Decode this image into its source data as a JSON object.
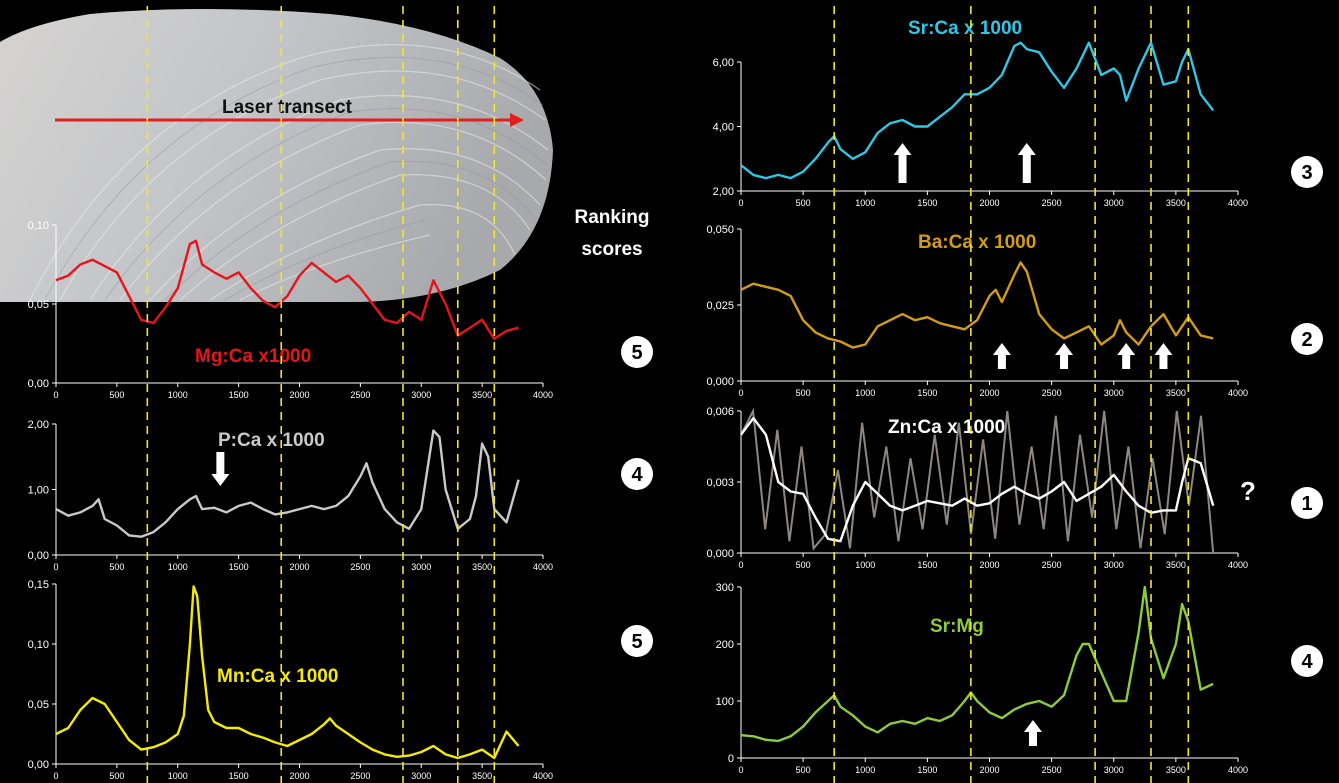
{
  "image": {
    "photo_label": "Laser transect",
    "ranking_label": [
      "Ranking",
      "scores"
    ],
    "zn_note": "?"
  },
  "colors": {
    "background": "#000000",
    "axis": "#ffffff",
    "guide_lines": "#f5e62a",
    "transect_arrow": "#e0201c",
    "badge_fill": "#ffffff",
    "badge_text": "#000000",
    "zn_raw": "#8e8680"
  },
  "chart_data": [
    {
      "id": "mg",
      "type": "line",
      "title": "Mg:Ca  x1000",
      "color": "#e8141a",
      "xlim": [
        0,
        4000
      ],
      "ylim": [
        0,
        0.1
      ],
      "xticks": [
        "0",
        "500",
        "1000",
        "1500",
        "2000",
        "2500",
        "3000",
        "3500",
        "4000"
      ],
      "yticks": [
        "0,00",
        "0,05",
        "0,10"
      ],
      "score": "5",
      "x": [
        0,
        100,
        200,
        300,
        400,
        500,
        600,
        700,
        800,
        900,
        1000,
        1100,
        1150,
        1200,
        1300,
        1400,
        1500,
        1600,
        1700,
        1800,
        1900,
        2000,
        2100,
        2200,
        2300,
        2400,
        2500,
        2600,
        2700,
        2800,
        2900,
        3000,
        3100,
        3200,
        3300,
        3400,
        3500,
        3600,
        3700,
        3800
      ],
      "y": [
        0.065,
        0.068,
        0.075,
        0.078,
        0.074,
        0.07,
        0.055,
        0.04,
        0.038,
        0.048,
        0.06,
        0.088,
        0.09,
        0.075,
        0.07,
        0.066,
        0.07,
        0.06,
        0.052,
        0.048,
        0.055,
        0.068,
        0.076,
        0.07,
        0.064,
        0.068,
        0.06,
        0.05,
        0.04,
        0.038,
        0.045,
        0.04,
        0.065,
        0.05,
        0.03,
        0.035,
        0.04,
        0.028,
        0.033,
        0.035
      ],
      "arrows": []
    },
    {
      "id": "p",
      "type": "line",
      "title": "P:Ca  x 1000",
      "color": "#c9c9c9",
      "xlim": [
        0,
        4000
      ],
      "ylim": [
        0,
        2
      ],
      "xticks": [
        "0",
        "500",
        "1000",
        "1500",
        "2000",
        "2500",
        "3000",
        "3500",
        "4000"
      ],
      "yticks": [
        "0,00",
        "1,00",
        "2,00"
      ],
      "score": "4",
      "x": [
        0,
        100,
        200,
        300,
        350,
        400,
        500,
        600,
        700,
        800,
        900,
        1000,
        1100,
        1150,
        1200,
        1300,
        1400,
        1500,
        1600,
        1700,
        1800,
        1900,
        2000,
        2100,
        2200,
        2300,
        2400,
        2500,
        2550,
        2600,
        2700,
        2800,
        2900,
        3000,
        3050,
        3100,
        3150,
        3200,
        3300,
        3400,
        3450,
        3500,
        3550,
        3600,
        3700,
        3800
      ],
      "y": [
        0.7,
        0.6,
        0.65,
        0.75,
        0.85,
        0.55,
        0.45,
        0.3,
        0.28,
        0.35,
        0.5,
        0.7,
        0.85,
        0.9,
        0.7,
        0.72,
        0.65,
        0.75,
        0.8,
        0.7,
        0.62,
        0.65,
        0.7,
        0.75,
        0.7,
        0.75,
        0.9,
        1.2,
        1.4,
        1.1,
        0.7,
        0.5,
        0.4,
        0.7,
        1.3,
        1.9,
        1.8,
        1.0,
        0.4,
        0.55,
        0.9,
        1.7,
        1.5,
        0.7,
        0.5,
        1.15
      ],
      "arrows": [
        {
          "x": 1350,
          "dir": "down"
        }
      ]
    },
    {
      "id": "mn",
      "type": "line",
      "title": "Mn:Ca   x 1000",
      "color": "#f4ea06",
      "xlim": [
        0,
        4000
      ],
      "ylim": [
        0,
        0.15
      ],
      "xticks": [
        "0",
        "500",
        "1000",
        "1500",
        "2000",
        "2500",
        "3000",
        "3500",
        "4000"
      ],
      "yticks": [
        "0,00",
        "0,05",
        "0,10",
        "0,15"
      ],
      "score": "5",
      "x": [
        0,
        100,
        200,
        300,
        400,
        500,
        600,
        700,
        800,
        900,
        1000,
        1050,
        1100,
        1130,
        1160,
        1200,
        1250,
        1300,
        1400,
        1500,
        1600,
        1700,
        1800,
        1900,
        2000,
        2100,
        2200,
        2250,
        2300,
        2400,
        2500,
        2600,
        2700,
        2800,
        2900,
        3000,
        3100,
        3200,
        3300,
        3400,
        3500,
        3600,
        3700,
        3800
      ],
      "y": [
        0.025,
        0.03,
        0.045,
        0.055,
        0.05,
        0.035,
        0.02,
        0.012,
        0.014,
        0.018,
        0.025,
        0.04,
        0.1,
        0.148,
        0.14,
        0.09,
        0.045,
        0.035,
        0.03,
        0.03,
        0.025,
        0.022,
        0.018,
        0.015,
        0.02,
        0.025,
        0.033,
        0.038,
        0.032,
        0.025,
        0.018,
        0.012,
        0.008,
        0.006,
        0.007,
        0.01,
        0.015,
        0.008,
        0.005,
        0.008,
        0.012,
        0.005,
        0.027,
        0.015
      ],
      "arrows": []
    },
    {
      "id": "sr",
      "type": "line",
      "title": "Sr:Ca   x 1000",
      "color": "#2ec8e6",
      "xlim": [
        0,
        4000
      ],
      "ylim": [
        2,
        6
      ],
      "xticks": [
        "0",
        "500",
        "1000",
        "1500",
        "2000",
        "2500",
        "3000",
        "3500",
        "4000"
      ],
      "yticks": [
        "2,00",
        "4,00",
        "6,00"
      ],
      "score": "3",
      "x": [
        0,
        100,
        200,
        300,
        400,
        500,
        600,
        700,
        750,
        800,
        900,
        1000,
        1100,
        1200,
        1300,
        1400,
        1500,
        1600,
        1700,
        1800,
        1900,
        2000,
        2100,
        2200,
        2250,
        2300,
        2400,
        2500,
        2600,
        2700,
        2800,
        2900,
        3000,
        3050,
        3100,
        3200,
        3300,
        3400,
        3500,
        3550,
        3600,
        3700,
        3800
      ],
      "y": [
        2.8,
        2.5,
        2.4,
        2.5,
        2.4,
        2.6,
        3.0,
        3.5,
        3.7,
        3.3,
        3.0,
        3.2,
        3.8,
        4.1,
        4.2,
        4.0,
        4.0,
        4.3,
        4.6,
        5.0,
        5.0,
        5.2,
        5.6,
        6.5,
        6.6,
        6.4,
        6.3,
        5.7,
        5.2,
        5.8,
        6.6,
        5.6,
        5.8,
        5.6,
        4.8,
        5.8,
        6.6,
        5.3,
        5.4,
        6.0,
        6.4,
        5.0,
        4.5
      ],
      "arrows": [
        {
          "x": 1300,
          "dir": "up"
        },
        {
          "x": 2300,
          "dir": "up"
        }
      ]
    },
    {
      "id": "ba",
      "type": "line",
      "title": "Ba:Ca   x 1000",
      "color": "#d49c12",
      "xlim": [
        0,
        4000
      ],
      "ylim": [
        0,
        0.05
      ],
      "xticks": [
        "0",
        "500",
        "1000",
        "1500",
        "2000",
        "2500",
        "3000",
        "3500",
        "4000"
      ],
      "yticks": [
        "0,000",
        "0,025",
        "0,050"
      ],
      "score": "2",
      "x": [
        0,
        100,
        200,
        300,
        400,
        500,
        600,
        700,
        800,
        900,
        1000,
        1100,
        1200,
        1300,
        1400,
        1500,
        1600,
        1700,
        1800,
        1900,
        2000,
        2050,
        2100,
        2200,
        2250,
        2300,
        2400,
        2500,
        2600,
        2700,
        2800,
        2900,
        3000,
        3050,
        3100,
        3200,
        3300,
        3400,
        3500,
        3600,
        3700,
        3800
      ],
      "y": [
        0.03,
        0.032,
        0.031,
        0.03,
        0.028,
        0.02,
        0.016,
        0.014,
        0.013,
        0.011,
        0.012,
        0.018,
        0.02,
        0.022,
        0.02,
        0.021,
        0.019,
        0.018,
        0.017,
        0.02,
        0.028,
        0.03,
        0.026,
        0.035,
        0.039,
        0.036,
        0.022,
        0.017,
        0.014,
        0.016,
        0.018,
        0.012,
        0.015,
        0.02,
        0.016,
        0.012,
        0.018,
        0.022,
        0.015,
        0.021,
        0.015,
        0.014
      ],
      "arrows": [
        {
          "x": 2100,
          "dir": "up"
        },
        {
          "x": 2600,
          "dir": "up"
        },
        {
          "x": 3100,
          "dir": "up"
        },
        {
          "x": 3400,
          "dir": "up"
        }
      ]
    },
    {
      "id": "zn",
      "type": "line",
      "title": "Zn:Ca   x 1000",
      "color": "#ffffff",
      "xlim": [
        0,
        4000
      ],
      "ylim": [
        0,
        0.006
      ],
      "xticks": [
        "0",
        "500",
        "1000",
        "1500",
        "2000",
        "2500",
        "3000",
        "3500",
        "4000"
      ],
      "yticks": [
        "0,000",
        "0,003",
        "0,006"
      ],
      "score": "1",
      "x": [
        0,
        100,
        200,
        300,
        400,
        500,
        600,
        700,
        800,
        900,
        1000,
        1100,
        1200,
        1300,
        1400,
        1500,
        1600,
        1700,
        1800,
        1900,
        2000,
        2100,
        2200,
        2300,
        2400,
        2500,
        2600,
        2700,
        2800,
        2900,
        3000,
        3100,
        3200,
        3300,
        3400,
        3500,
        3550,
        3600,
        3700,
        3800
      ],
      "y": [
        0.005,
        0.0057,
        0.005,
        0.003,
        0.0026,
        0.0025,
        0.0015,
        0.0006,
        0.0005,
        0.002,
        0.003,
        0.0025,
        0.002,
        0.0018,
        0.002,
        0.0022,
        0.0021,
        0.002,
        0.0023,
        0.002,
        0.0021,
        0.0025,
        0.0028,
        0.0025,
        0.0023,
        0.0026,
        0.003,
        0.0022,
        0.0025,
        0.0028,
        0.0033,
        0.0026,
        0.002,
        0.0017,
        0.0018,
        0.0018,
        0.003,
        0.004,
        0.0038,
        0.002
      ],
      "raw": [
        0.005,
        0.006,
        0.001,
        0.0052,
        0.0005,
        0.0045,
        0.0002,
        0.0008,
        0.0035,
        0.0002,
        0.0055,
        0.0015,
        0.0045,
        0.0005,
        0.004,
        0.001,
        0.005,
        0.0012,
        0.0055,
        0.0008,
        0.0048,
        0.0006,
        0.006,
        0.0012,
        0.0045,
        0.001,
        0.0058,
        0.0005,
        0.005,
        0.0015,
        0.006,
        0.001,
        0.0045,
        0.0002,
        0.004,
        0.0008,
        0.006,
        0.002,
        0.0058,
        0.0
      ],
      "arrows": []
    },
    {
      "id": "srmg",
      "type": "line",
      "title": "Sr:Mg",
      "color": "#8ccc3c",
      "xlim": [
        0,
        4000
      ],
      "ylim": [
        0,
        300
      ],
      "xticks": [
        "0",
        "500",
        "1000",
        "1500",
        "2000",
        "2500",
        "3000",
        "3500",
        "4000"
      ],
      "yticks": [
        "0",
        "100",
        "200",
        "300"
      ],
      "score": "4",
      "x": [
        0,
        100,
        200,
        300,
        400,
        500,
        600,
        700,
        750,
        800,
        900,
        1000,
        1100,
        1200,
        1300,
        1400,
        1500,
        1600,
        1700,
        1800,
        1850,
        1900,
        2000,
        2100,
        2200,
        2300,
        2400,
        2500,
        2600,
        2700,
        2750,
        2800,
        2900,
        3000,
        3100,
        3200,
        3250,
        3300,
        3400,
        3500,
        3550,
        3600,
        3700,
        3800
      ],
      "y": [
        40,
        38,
        32,
        30,
        38,
        55,
        80,
        100,
        110,
        90,
        75,
        55,
        45,
        60,
        65,
        60,
        70,
        65,
        75,
        100,
        115,
        100,
        80,
        70,
        85,
        95,
        100,
        90,
        110,
        180,
        200,
        200,
        150,
        100,
        100,
        220,
        300,
        210,
        140,
        200,
        270,
        240,
        120,
        130
      ],
      "arrows": [
        {
          "x": 2350,
          "dir": "up"
        }
      ]
    }
  ]
}
